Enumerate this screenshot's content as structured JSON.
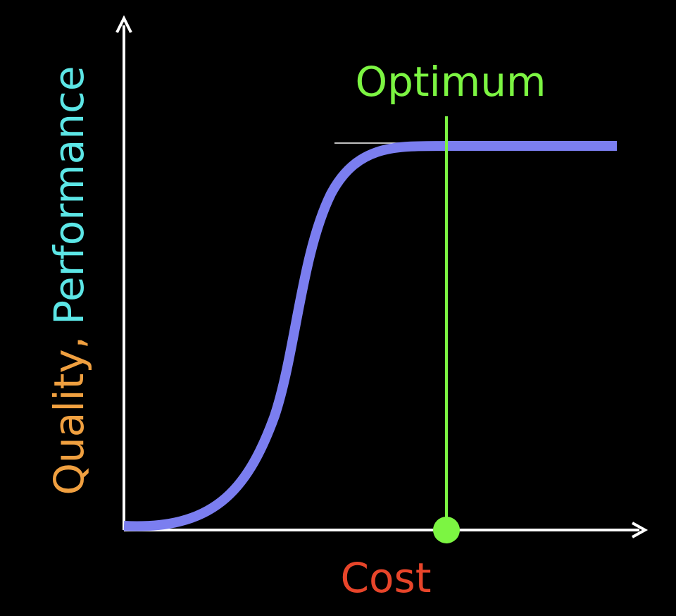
{
  "optimum_label": "Optimum",
  "x_axis_label": "Cost",
  "y_axis_label": {
    "quality": "Quality,",
    "performance": "Performance"
  }
}
